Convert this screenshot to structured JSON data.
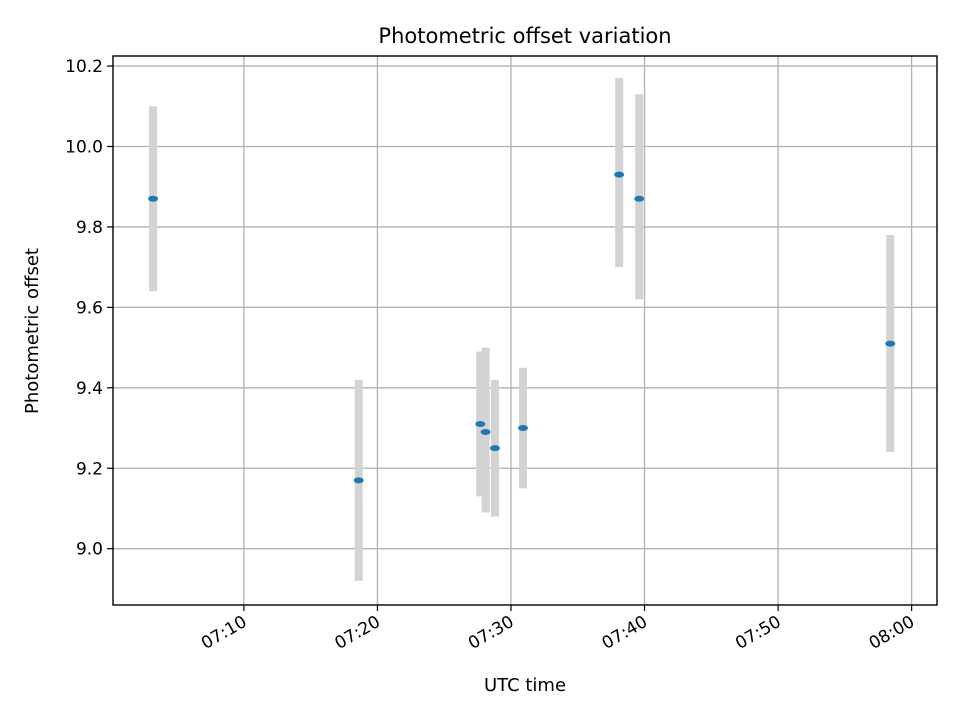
{
  "chart_data": {
    "type": "scatter",
    "title": "Photometric offset variation",
    "xlabel": "UTC time",
    "ylabel": "Photometric offset",
    "x_ticks": [
      "07:10",
      "07:20",
      "07:30",
      "07:40",
      "07:50",
      "08:00"
    ],
    "y_ticks": [
      "9.0",
      "9.2",
      "9.4",
      "9.6",
      "9.8",
      "10.0",
      "10.2"
    ],
    "xlim": [
      "07:00:12",
      "08:01:54"
    ],
    "ylim": [
      8.86,
      10.225
    ],
    "grid": true,
    "colors": {
      "point": "#1f77b4",
      "error_bar": "#d3d3d3",
      "grid": "#b0b0b0"
    },
    "points": [
      {
        "x": "07:03:12",
        "y": 9.87,
        "ylow": 9.64,
        "yhigh": 10.1
      },
      {
        "x": "07:18:36",
        "y": 9.17,
        "ylow": 8.92,
        "yhigh": 9.42
      },
      {
        "x": "07:27:42",
        "y": 9.31,
        "ylow": 9.13,
        "yhigh": 9.49
      },
      {
        "x": "07:28:06",
        "y": 9.29,
        "ylow": 9.09,
        "yhigh": 9.5
      },
      {
        "x": "07:28:48",
        "y": 9.25,
        "ylow": 9.08,
        "yhigh": 9.42
      },
      {
        "x": "07:30:54",
        "y": 9.3,
        "ylow": 9.15,
        "yhigh": 9.45
      },
      {
        "x": "07:38:06",
        "y": 9.93,
        "ylow": 9.7,
        "yhigh": 10.17
      },
      {
        "x": "07:39:36",
        "y": 9.87,
        "ylow": 9.62,
        "yhigh": 10.13
      },
      {
        "x": "07:58:24",
        "y": 9.51,
        "ylow": 9.24,
        "yhigh": 9.78
      }
    ]
  }
}
